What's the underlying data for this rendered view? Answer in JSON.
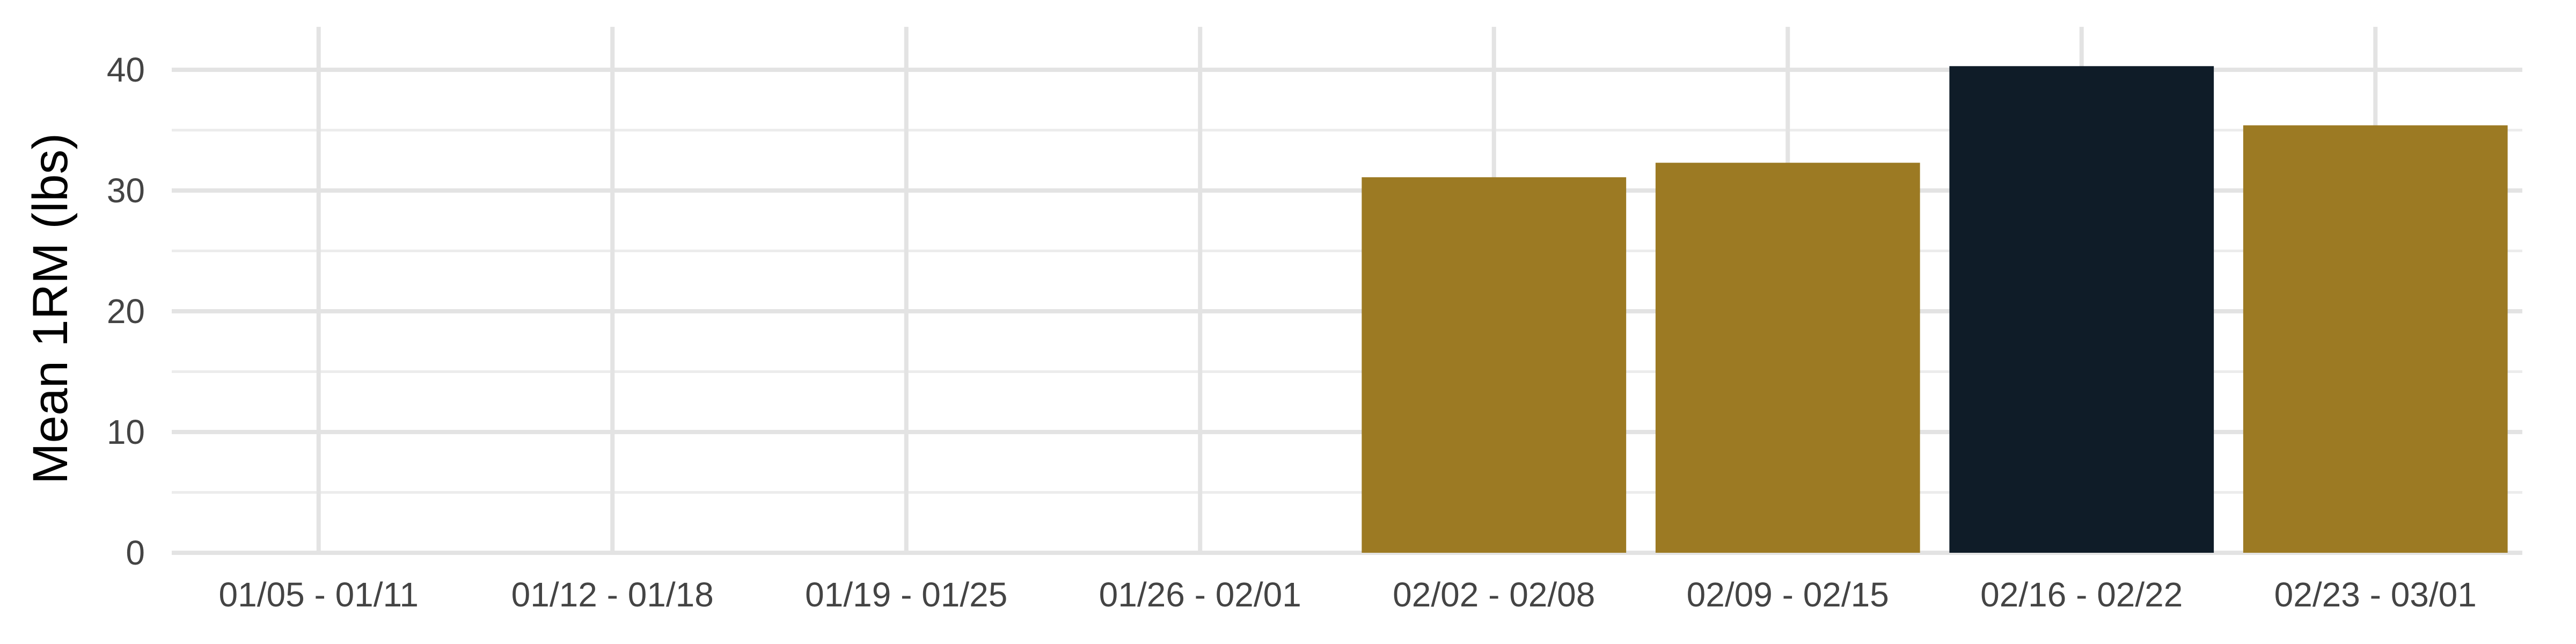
{
  "chart_data": {
    "type": "bar",
    "title": "",
    "xlabel": "",
    "ylabel": "Mean 1RM (lbs)",
    "categories": [
      "01/05 - 01/11",
      "01/12 - 01/18",
      "01/19 - 01/25",
      "01/26 - 02/01",
      "02/02 - 02/08",
      "02/09 - 02/15",
      "02/16 - 02/22",
      "02/23 - 03/01"
    ],
    "values": [
      null,
      null,
      null,
      null,
      31.1,
      32.3,
      40.3,
      35.4
    ],
    "ylim": [
      0,
      44
    ],
    "yticks": [
      0,
      10,
      20,
      30,
      40
    ],
    "grid": true,
    "legend": "none",
    "colors": {
      "bar": "#9c7a23",
      "highlight": "#0f1c28"
    },
    "highlight_index": 6
  }
}
